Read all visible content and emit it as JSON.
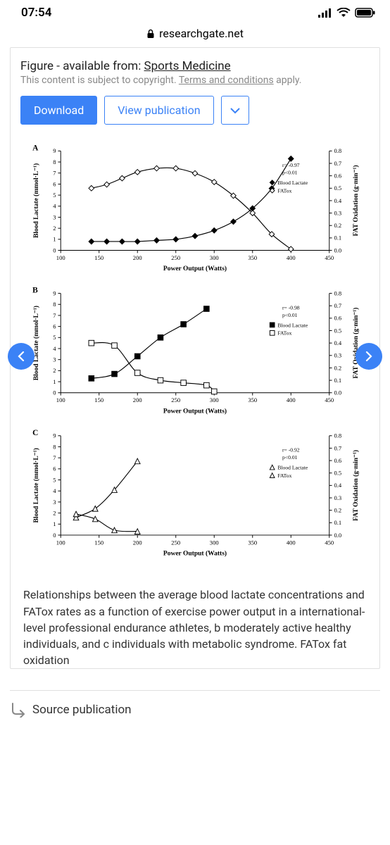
{
  "status": {
    "time": "07:54"
  },
  "url": {
    "domain": "researchgate.net"
  },
  "header": {
    "figure_prefix": "Figure - available from: ",
    "figure_source": "Sports Medicine",
    "copyright_prefix": "This content is subject to copyright. ",
    "terms_link": "Terms and conditions",
    "copyright_suffix": " apply."
  },
  "buttons": {
    "download": "Download",
    "view": "View publication"
  },
  "caption": "Relationships between the average blood lactate concentrations and FATox rates as a function of exercise power output in a international-level professional endurance athletes, b moderately active healthy individuals, and c individuals with metabolic syndrome. FATox fat oxidation",
  "source": {
    "label": "Source publication"
  },
  "chart_common": {
    "xlabel": "Power Output (Watts)",
    "ylabel_left": "Blood Lactate (mmol·L⁻¹)",
    "ylabel_right": "FAT Oxidation (g·min⁻¹)",
    "xlim": [
      100,
      450
    ],
    "xtick_step": 50,
    "ylim_left": [
      0,
      9
    ],
    "ytick_left_step": 1,
    "ylim_right": [
      0.0,
      0.8
    ],
    "ytick_right_step": 0.1,
    "line_color": "#000000",
    "marker_stroke": "#000000",
    "marker_size": 4,
    "line_width": 1.2,
    "background": "#ffffff"
  },
  "panels": [
    {
      "id": "A",
      "marker_shape": "diamond",
      "stats": {
        "r": "r= -0.97",
        "p": "p<0.01"
      },
      "legend": {
        "lactate": "Blood Lactate",
        "fatox": "FATox"
      },
      "lactate": {
        "x": [
          140,
          160,
          180,
          200,
          225,
          250,
          275,
          300,
          325,
          350,
          375,
          400
        ],
        "y": [
          0.8,
          0.8,
          0.8,
          0.8,
          0.9,
          1.0,
          1.3,
          1.8,
          2.6,
          3.8,
          5.6,
          8.3
        ],
        "fill": "#000000"
      },
      "fatox": {
        "x": [
          140,
          160,
          180,
          200,
          225,
          250,
          275,
          300,
          325,
          350,
          375,
          400
        ],
        "y": [
          0.5,
          0.53,
          0.58,
          0.63,
          0.66,
          0.66,
          0.62,
          0.55,
          0.44,
          0.3,
          0.13,
          0.01
        ],
        "fill": "#ffffff"
      }
    },
    {
      "id": "B",
      "marker_shape": "square",
      "stats": {
        "r": "r= -0.98",
        "p": "p<0.01"
      },
      "legend": {
        "lactate": "Blood Lactate",
        "fatox": "FATox"
      },
      "lactate": {
        "x": [
          140,
          170,
          200,
          230,
          260,
          290
        ],
        "y": [
          1.3,
          1.7,
          3.3,
          5.0,
          6.2,
          7.6
        ],
        "fill": "#000000"
      },
      "fatox": {
        "x": [
          140,
          170,
          200,
          230,
          260,
          290,
          300
        ],
        "y": [
          0.4,
          0.38,
          0.16,
          0.1,
          0.08,
          0.06,
          0.01
        ],
        "fill": "#ffffff"
      }
    },
    {
      "id": "C",
      "marker_shape": "triangle",
      "stats": {
        "r": "r= -0.92",
        "p": "p<0.01"
      },
      "legend": {
        "lactate": "Blood Lactate",
        "fatox": "FATox"
      },
      "lactate": {
        "x": [
          120,
          145,
          170,
          200
        ],
        "y": [
          1.6,
          2.4,
          4.1,
          6.7
        ],
        "fill": "#ffffff"
      },
      "fatox": {
        "x": [
          120,
          145,
          170,
          200
        ],
        "y": [
          0.17,
          0.13,
          0.04,
          0.03
        ],
        "fill": "#ffffff"
      }
    }
  ]
}
